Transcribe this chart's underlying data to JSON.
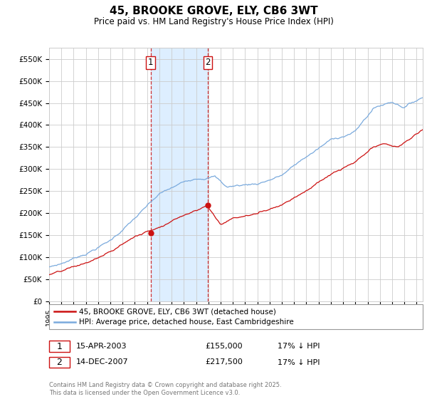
{
  "title": "45, BROOKE GROVE, ELY, CB6 3WT",
  "subtitle": "Price paid vs. HM Land Registry's House Price Index (HPI)",
  "hpi_color": "#7aaadd",
  "price_color": "#cc1111",
  "vline1_color": "#cc1111",
  "vline2_color": "#cc1111",
  "highlight_fill": "#ddeeff",
  "ylim": [
    0,
    575000
  ],
  "yticks": [
    0,
    50000,
    100000,
    150000,
    200000,
    250000,
    300000,
    350000,
    400000,
    450000,
    500000,
    550000
  ],
  "ytick_labels": [
    "£0",
    "£50K",
    "£100K",
    "£150K",
    "£200K",
    "£250K",
    "£300K",
    "£350K",
    "£400K",
    "£450K",
    "£500K",
    "£550K"
  ],
  "legend_red": "45, BROOKE GROVE, ELY, CB6 3WT (detached house)",
  "legend_blue": "HPI: Average price, detached house, East Cambridgeshire",
  "transaction1_label": "1",
  "transaction1_date": "15-APR-2003",
  "transaction1_price": "£155,000",
  "transaction1_hpi": "17% ↓ HPI",
  "transaction1_x": 2003.28,
  "transaction1_y": 155000,
  "transaction2_label": "2",
  "transaction2_date": "14-DEC-2007",
  "transaction2_price": "£217,500",
  "transaction2_hpi": "17% ↓ HPI",
  "transaction2_x": 2007.95,
  "transaction2_y": 217500,
  "copyright": "Contains HM Land Registry data © Crown copyright and database right 2025.\nThis data is licensed under the Open Government Licence v3.0.",
  "xmin": 1995,
  "xmax": 2025.5
}
